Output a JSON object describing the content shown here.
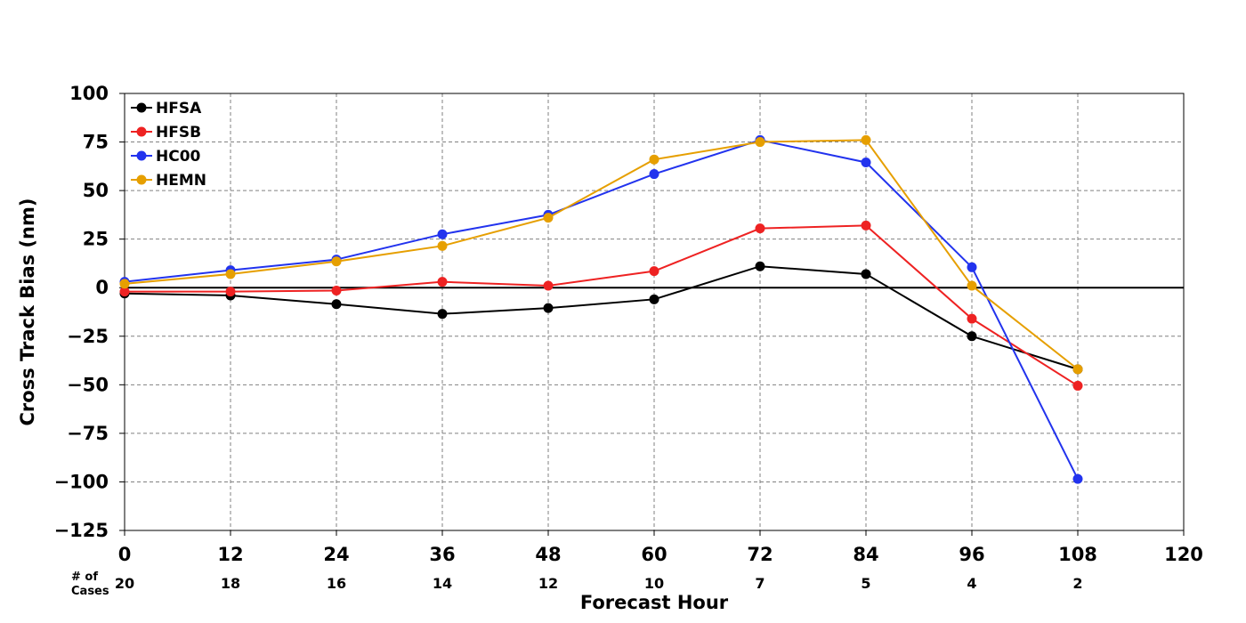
{
  "chart_data": {
    "type": "line",
    "title": "",
    "xlabel": "Forecast Hour",
    "ylabel": "Cross Track Bias (nm)",
    "xlim": [
      0,
      120
    ],
    "ylim": [
      -125,
      100
    ],
    "xticks": [
      0,
      12,
      24,
      36,
      48,
      60,
      72,
      84,
      96,
      108,
      120
    ],
    "yticks": [
      100,
      75,
      50,
      25,
      0,
      -25,
      -50,
      -75,
      -100,
      -125
    ],
    "ytick_labels": [
      "100",
      "75",
      "50",
      "25",
      "0",
      "−25",
      "−50",
      "−75",
      "−100",
      "−125"
    ],
    "grid": true,
    "legend_position": "top-left",
    "cases_label_line1": "# of",
    "cases_label_line2": "Cases",
    "cases": [
      {
        "x": 0,
        "n": "20"
      },
      {
        "x": 12,
        "n": "18"
      },
      {
        "x": 24,
        "n": "16"
      },
      {
        "x": 36,
        "n": "14"
      },
      {
        "x": 48,
        "n": "12"
      },
      {
        "x": 60,
        "n": "10"
      },
      {
        "x": 72,
        "n": "7"
      },
      {
        "x": 84,
        "n": "5"
      },
      {
        "x": 96,
        "n": "4"
      },
      {
        "x": 108,
        "n": "2"
      }
    ],
    "x": [
      0,
      12,
      24,
      36,
      48,
      60,
      72,
      84,
      96,
      108
    ],
    "series": [
      {
        "name": "HFSA",
        "color": "#000000",
        "values": [
          -3,
          -4,
          -8.5,
          -13.5,
          -10.5,
          -6,
          11,
          7,
          -25,
          -42
        ]
      },
      {
        "name": "HFSB",
        "color": "#ee2222",
        "values": [
          -2,
          -2,
          -1.5,
          3,
          1,
          8.5,
          30.5,
          32,
          -16,
          -50.5
        ]
      },
      {
        "name": "HC00",
        "color": "#2233ee",
        "values": [
          3,
          9,
          14.5,
          27.5,
          37.5,
          58.5,
          76,
          64.5,
          10.5,
          -98.5
        ]
      },
      {
        "name": "HEMN",
        "color": "#e69f00",
        "values": [
          2,
          7,
          13.5,
          21.5,
          36,
          66,
          75,
          76,
          1,
          -42
        ]
      }
    ]
  }
}
